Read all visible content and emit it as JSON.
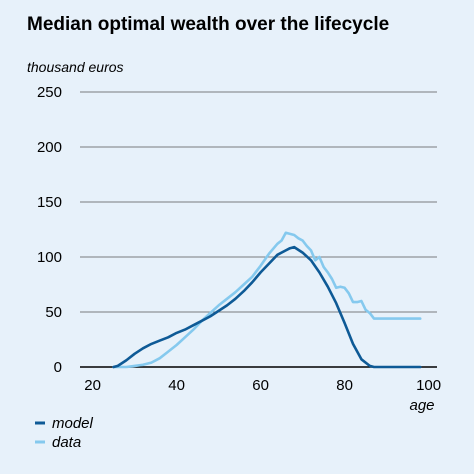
{
  "colors": {
    "background": "#e7f1fa",
    "model": "#0e5a96",
    "data": "#85c9ee",
    "grid": "#555555",
    "axis": "#000000"
  },
  "chart_data": {
    "type": "line",
    "title": "Median optimal wealth over the lifecycle",
    "ylabel": "thousand euros",
    "xlabel": "age",
    "xlim": [
      17,
      102
    ],
    "ylim": [
      0,
      250
    ],
    "xticks": [
      20,
      40,
      60,
      80,
      100
    ],
    "yticks": [
      0,
      50,
      100,
      150,
      200,
      250
    ],
    "grid": "horizontal",
    "legend_position": "bottom-left",
    "series": [
      {
        "name": "model",
        "color": "#0e5a96",
        "x": [
          25,
          26,
          28,
          30,
          32,
          34,
          36,
          38,
          40,
          42,
          44,
          46,
          48,
          50,
          52,
          54,
          56,
          58,
          60,
          62,
          64,
          66,
          67,
          68,
          70,
          72,
          74,
          76,
          78,
          80,
          82,
          84,
          86,
          87,
          88,
          90,
          92,
          94,
          96,
          98
        ],
        "y": [
          0,
          1,
          6,
          12,
          17,
          21,
          24,
          27,
          31,
          34,
          38,
          42,
          46,
          51,
          56,
          62,
          69,
          77,
          86,
          94,
          102,
          106,
          108,
          109,
          104,
          97,
          86,
          73,
          58,
          40,
          21,
          7,
          1,
          0,
          0,
          0,
          0,
          0,
          0,
          0
        ]
      },
      {
        "name": "data",
        "color": "#85c9ee",
        "x": [
          25,
          28,
          30,
          32,
          34,
          36,
          38,
          40,
          42,
          44,
          46,
          48,
          50,
          52,
          54,
          56,
          58,
          60,
          62,
          64,
          65,
          66,
          67,
          68,
          69,
          70,
          71,
          72,
          73,
          74,
          75,
          76,
          77,
          78,
          79,
          80,
          81,
          82,
          83,
          84,
          85,
          86,
          87,
          88,
          90,
          92,
          94,
          96,
          98
        ],
        "y": [
          0,
          0,
          1,
          2,
          4,
          8,
          14,
          20,
          27,
          34,
          42,
          49,
          56,
          62,
          68,
          75,
          82,
          92,
          103,
          112,
          115,
          122,
          121,
          120,
          117,
          115,
          110,
          106,
          97,
          100,
          91,
          86,
          80,
          72,
          73,
          72,
          67,
          59,
          59,
          60,
          52,
          49,
          44,
          44,
          44,
          44,
          44,
          44,
          44
        ]
      }
    ]
  }
}
